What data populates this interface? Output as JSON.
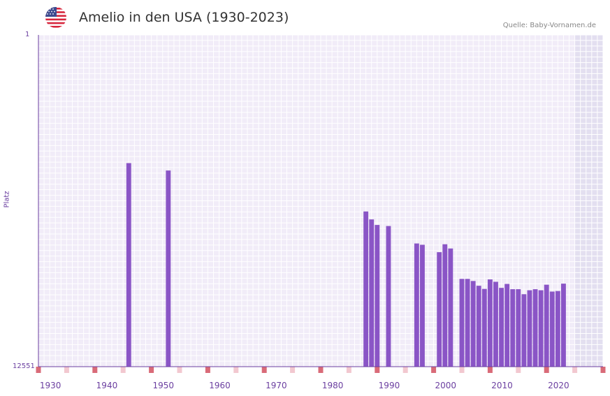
{
  "header": {
    "title": "Amelio in den USA (1930-2023)",
    "source": "Quelle: Baby-Vornamen.de",
    "flag_icon": "usa-flag-icon"
  },
  "colors": {
    "bar": "#8a55c6",
    "axis": "#6b3fa0",
    "grid_bg": "#f1ecf8",
    "future_bg": "#e3dff0",
    "decade_marker": "#d96b78",
    "half_marker": "#f2c8d0"
  },
  "chart_data": {
    "type": "bar",
    "title": "Amelio in den USA (1930-2023)",
    "xlabel": "",
    "ylabel": "Platz",
    "y_reversed": true,
    "ylim": [
      1,
      12551
    ],
    "y_tick_labels": [
      "1",
      "12551"
    ],
    "xlim": [
      1928,
      2028
    ],
    "x_tick_labels": [
      "1930",
      "1940",
      "1950",
      "1960",
      "1970",
      "1980",
      "1990",
      "2000",
      "2010",
      "2020"
    ],
    "x": [
      1944,
      1951,
      1986,
      1987,
      1988,
      1990,
      1995,
      1996,
      1999,
      2000,
      2001,
      2003,
      2004,
      2005,
      2006,
      2007,
      2008,
      2009,
      2010,
      2011,
      2012,
      2013,
      2014,
      2015,
      2016,
      2017,
      2018,
      2019,
      2020,
      2021
    ],
    "values": [
      4850,
      5130,
      6680,
      6980,
      7190,
      7230,
      7890,
      7940,
      8220,
      7920,
      8080,
      9230,
      9230,
      9310,
      9490,
      9610,
      9250,
      9340,
      9570,
      9420,
      9620,
      9620,
      9810,
      9660,
      9620,
      9660,
      9450,
      9710,
      9690,
      9410
    ]
  }
}
